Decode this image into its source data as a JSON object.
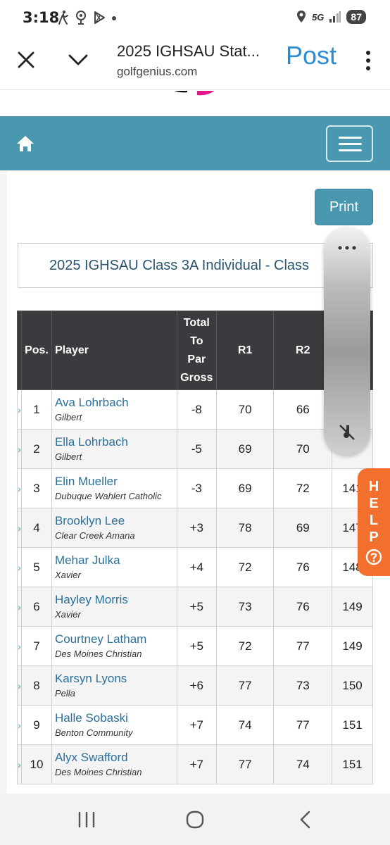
{
  "status_bar": {
    "time": "3:18",
    "network": "5G",
    "battery": "87",
    "icons": [
      "walk-icon",
      "location-pin-icon",
      "play-store-icon",
      "dot-icon",
      "location-icon",
      "signal-icon"
    ]
  },
  "browser": {
    "title": "2025 IGHSAU Stat...",
    "url": "golfgenius.com",
    "post_label": "Post",
    "icons": [
      "close-icon",
      "chevron-down-icon",
      "more-vert-icon"
    ]
  },
  "site": {
    "nav_color": "#4a97b0",
    "icons": [
      "home-icon",
      "hamburger-menu-icon"
    ]
  },
  "print_label": "Print",
  "event_title": "2025 IGHSAU Class 3A Individual - Class",
  "table": {
    "headers": {
      "pos": "Pos.",
      "player": "Player",
      "to_par_line1": "Total",
      "to_par_line2": "To",
      "to_par_line3": "Par",
      "to_par_line4": "Gross",
      "r1": "R1",
      "r2": "R2"
    },
    "rows": [
      {
        "pos": "1",
        "name": "Ava Lohrbach",
        "school": "Gilbert",
        "to_par": "-8",
        "r1": "70",
        "r2": "66",
        "total": ""
      },
      {
        "pos": "2",
        "name": "Ella Lohrbach",
        "school": "Gilbert",
        "to_par": "-5",
        "r1": "69",
        "r2": "70",
        "total": ""
      },
      {
        "pos": "3",
        "name": "Elin Mueller",
        "school": "Dubuque Wahlert Catholic",
        "to_par": "-3",
        "r1": "69",
        "r2": "72",
        "total": "141"
      },
      {
        "pos": "4",
        "name": "Brooklyn Lee",
        "school": "Clear Creek Amana",
        "to_par": "+3",
        "r1": "78",
        "r2": "69",
        "total": "147"
      },
      {
        "pos": "5",
        "name": "Mehar Julka",
        "school": "Xavier",
        "to_par": "+4",
        "r1": "72",
        "r2": "76",
        "total": "148"
      },
      {
        "pos": "6",
        "name": "Hayley Morris",
        "school": "Xavier",
        "to_par": "+5",
        "r1": "73",
        "r2": "76",
        "total": "149"
      },
      {
        "pos": "7",
        "name": "Courtney Latham",
        "school": "Des Moines Christian",
        "to_par": "+5",
        "r1": "72",
        "r2": "77",
        "total": "149"
      },
      {
        "pos": "8",
        "name": "Karsyn Lyons",
        "school": "Pella",
        "to_par": "+6",
        "r1": "77",
        "r2": "73",
        "total": "150"
      },
      {
        "pos": "9",
        "name": "Halle Sobaski",
        "school": "Benton Community",
        "to_par": "+7",
        "r1": "74",
        "r2": "77",
        "total": "151"
      },
      {
        "pos": "10",
        "name": "Alyx Swafford",
        "school": "Des Moines Christian",
        "to_par": "+7",
        "r1": "77",
        "r2": "74",
        "total": "151"
      }
    ]
  },
  "help": {
    "letters": [
      "H",
      "E",
      "L",
      "P"
    ],
    "color": "#f36f2d"
  },
  "overlay": {
    "icons": [
      "more-horiz-icon",
      "mute-icon"
    ]
  },
  "system_nav": {
    "icons": [
      "recent-apps-icon",
      "home-circle-icon",
      "back-icon"
    ]
  }
}
